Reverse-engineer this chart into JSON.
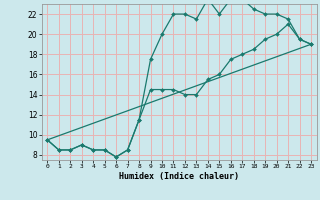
{
  "xlabel": "Humidex (Indice chaleur)",
  "background_color": "#cce8ec",
  "grid_color": "#e8b4b4",
  "line_color": "#1a7a6e",
  "xlim": [
    -0.5,
    23.5
  ],
  "ylim": [
    7.5,
    23.0
  ],
  "yticks": [
    8,
    10,
    12,
    14,
    16,
    18,
    20,
    22
  ],
  "xticks": [
    0,
    1,
    2,
    3,
    4,
    5,
    6,
    7,
    8,
    9,
    10,
    11,
    12,
    13,
    14,
    15,
    16,
    17,
    18,
    19,
    20,
    21,
    22,
    23
  ],
  "line1_x": [
    0,
    1,
    2,
    3,
    4,
    5,
    6,
    7,
    8,
    9,
    10,
    11,
    12,
    13,
    14,
    15,
    16,
    17,
    18,
    19,
    20,
    21,
    22,
    23
  ],
  "line1_y": [
    9.5,
    8.5,
    8.5,
    9.0,
    8.5,
    8.5,
    7.8,
    8.5,
    11.5,
    17.5,
    20.0,
    22.0,
    22.0,
    21.5,
    23.5,
    22.0,
    23.5,
    23.5,
    22.5,
    22.0,
    22.0,
    21.5,
    19.5,
    19.0
  ],
  "line2_x": [
    0,
    1,
    2,
    3,
    4,
    5,
    6,
    7,
    8,
    9,
    10,
    11,
    12,
    13,
    14,
    15,
    16,
    17,
    18,
    19,
    20,
    21,
    22,
    23
  ],
  "line2_y": [
    9.5,
    8.5,
    8.5,
    9.0,
    8.5,
    8.5,
    7.8,
    8.5,
    11.5,
    14.5,
    14.5,
    14.5,
    14.0,
    14.0,
    15.5,
    16.0,
    17.5,
    18.0,
    18.5,
    19.5,
    20.0,
    21.0,
    19.5,
    19.0
  ],
  "line3_x": [
    0,
    23
  ],
  "line3_y": [
    9.5,
    19.0
  ]
}
